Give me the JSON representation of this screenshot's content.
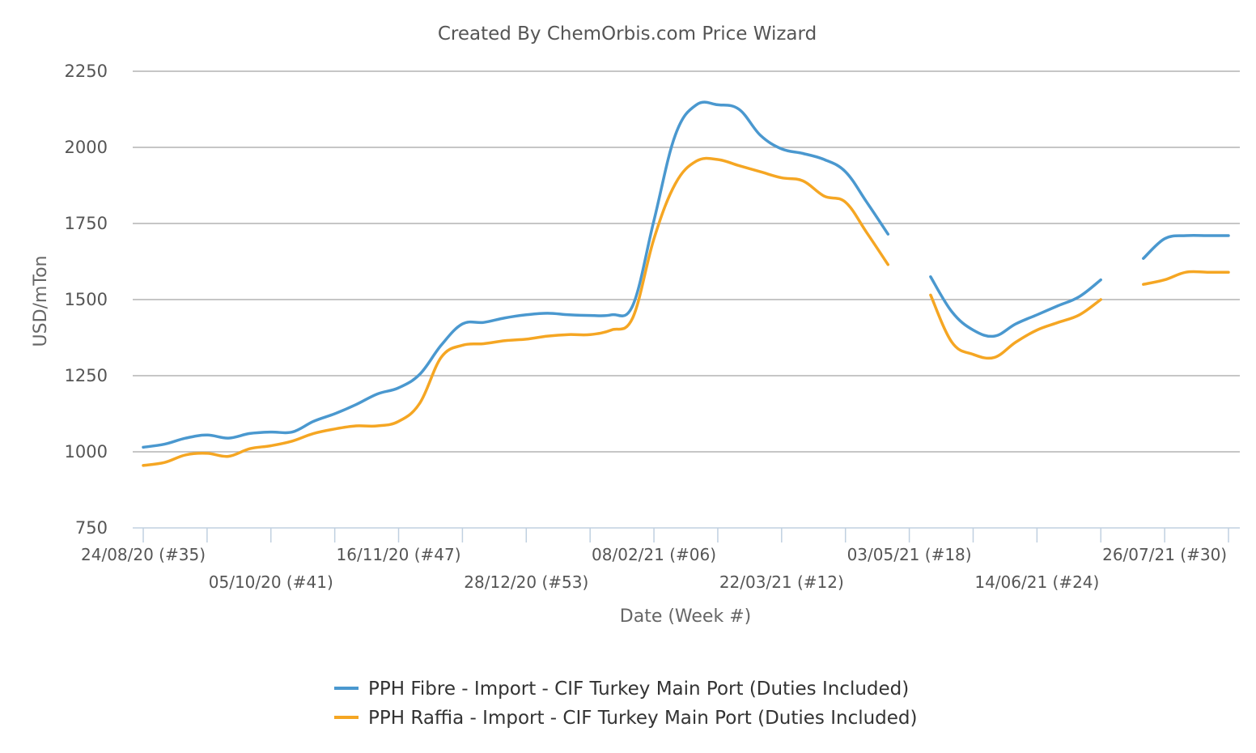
{
  "chart_data": {
    "type": "line",
    "title": "Created By ChemOrbis.com Price Wizard",
    "xlabel": "Date (Week #)",
    "ylabel": "USD/mTon",
    "ylim": [
      750,
      2250
    ],
    "yticks": [
      750,
      1000,
      1250,
      1500,
      1750,
      2000,
      2250
    ],
    "xlim": [
      0,
      51
    ],
    "x_tick_labels": [
      {
        "x": 0,
        "label": "24/08/20 (#35)",
        "row": 1
      },
      {
        "x": 6,
        "label": "05/10/20 (#41)",
        "row": 2
      },
      {
        "x": 12,
        "label": "16/11/20 (#47)",
        "row": 1
      },
      {
        "x": 18,
        "label": "28/12/20 (#53)",
        "row": 2
      },
      {
        "x": 24,
        "label": "08/02/21 (#06)",
        "row": 1
      },
      {
        "x": 30,
        "label": "22/03/21 (#12)",
        "row": 2
      },
      {
        "x": 36,
        "label": "03/05/21 (#18)",
        "row": 1
      },
      {
        "x": 42,
        "label": "14/06/21 (#24)",
        "row": 2
      },
      {
        "x": 48,
        "label": "26/07/21 (#30)",
        "row": 1
      }
    ],
    "x_ticks": [
      0,
      3,
      6,
      9,
      12,
      15,
      18,
      21,
      24,
      27,
      30,
      33,
      36,
      39,
      42,
      45,
      48,
      51
    ],
    "grid": true,
    "legend_position": "bottom",
    "series": [
      {
        "name": "PPH Fibre - Import - CIF Turkey Main Port (Duties Included)",
        "color": "#4a98cf",
        "x": [
          0,
          1,
          2,
          3,
          4,
          5,
          6,
          7,
          8,
          9,
          10,
          11,
          12,
          13,
          14,
          15,
          16,
          17,
          18,
          19,
          20,
          21,
          22,
          23,
          24,
          25,
          26,
          27,
          28,
          29,
          30,
          31,
          32,
          33,
          34,
          35,
          36,
          37,
          38,
          39,
          40,
          41,
          42,
          43,
          44,
          45,
          46,
          47,
          48,
          49,
          50,
          51
        ],
        "values": [
          1015,
          1025,
          1045,
          1055,
          1045,
          1060,
          1065,
          1065,
          1100,
          1125,
          1155,
          1190,
          1210,
          1255,
          1350,
          1420,
          1425,
          1440,
          1450,
          1455,
          1450,
          1448,
          1450,
          1480,
          1760,
          2040,
          2140,
          2140,
          2125,
          2040,
          1995,
          1980,
          1960,
          1920,
          1820,
          1715,
          null,
          1575,
          1460,
          1400,
          1380,
          1420,
          1450,
          1480,
          1510,
          1565,
          null,
          1635,
          1700,
          1710,
          1710,
          1710
        ]
      },
      {
        "name": "PPH Raffia - Import - CIF Turkey Main Port (Duties Included)",
        "color": "#f5a623",
        "x": [
          0,
          1,
          2,
          3,
          4,
          5,
          6,
          7,
          8,
          9,
          10,
          11,
          12,
          13,
          14,
          15,
          16,
          17,
          18,
          19,
          20,
          21,
          22,
          23,
          24,
          25,
          26,
          27,
          28,
          29,
          30,
          31,
          32,
          33,
          34,
          35,
          36,
          37,
          38,
          39,
          40,
          41,
          42,
          43,
          44,
          45,
          46,
          47,
          48,
          49,
          50,
          51
        ],
        "values": [
          955,
          965,
          990,
          995,
          985,
          1010,
          1020,
          1035,
          1060,
          1075,
          1085,
          1085,
          1100,
          1160,
          1310,
          1350,
          1355,
          1365,
          1370,
          1380,
          1385,
          1385,
          1400,
          1440,
          1700,
          1880,
          1955,
          1960,
          1940,
          1920,
          1900,
          1890,
          1840,
          1820,
          1720,
          1615,
          null,
          1515,
          1360,
          1320,
          1310,
          1360,
          1400,
          1425,
          1450,
          1500,
          null,
          1550,
          1565,
          1590,
          1590,
          1590
        ]
      }
    ]
  }
}
